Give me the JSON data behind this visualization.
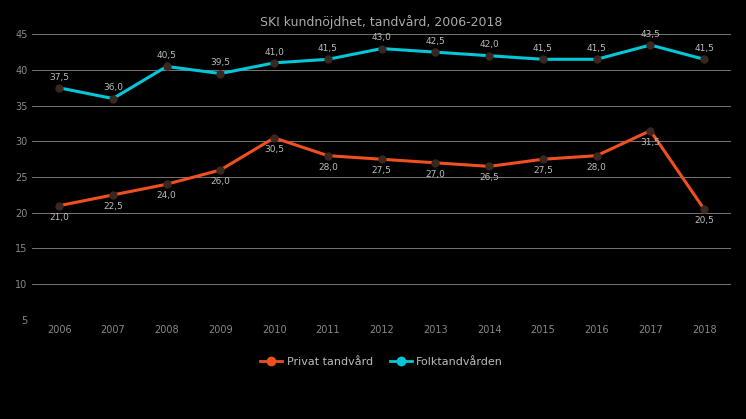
{
  "title": "SKI kundnöjdhet, tandvård, 2006-2018",
  "years": [
    2006,
    2007,
    2008,
    2009,
    2010,
    2011,
    2012,
    2013,
    2014,
    2015,
    2016,
    2017,
    2018
  ],
  "privat": [
    21.0,
    22.5,
    24.0,
    26.0,
    30.5,
    28.0,
    27.5,
    27.0,
    26.5,
    27.5,
    28.0,
    31.5,
    20.5
  ],
  "folk": [
    37.5,
    36.0,
    40.5,
    39.5,
    41.0,
    41.5,
    43.0,
    42.5,
    42.0,
    41.5,
    41.5,
    43.5,
    41.5
  ],
  "privat_labels": [
    "21,0",
    "22,5",
    "24,0",
    "26,0",
    "30,5",
    "28,0",
    "27,5",
    "27,0",
    "26,5",
    "27,5",
    "28,0",
    "31,5",
    "20,5"
  ],
  "folk_labels": [
    "37,5",
    "36,0",
    "40,5",
    "39,5",
    "41,0",
    "41,5",
    "43,0",
    "42,5",
    "42,0",
    "41,5",
    "41,5",
    "43,5",
    "41,5"
  ],
  "privat_color": "#f05020",
  "folk_color": "#00c8d8",
  "marker_color": "#3a2820",
  "legend_privat": "Privat tandvård",
  "legend_folk": "Folktandvården",
  "ylim": [
    5,
    45
  ],
  "yticks": [
    5,
    10,
    15,
    20,
    25,
    30,
    35,
    40,
    45
  ],
  "background_color": "#000000",
  "plot_bg": "#000000",
  "grid_color": "#888888",
  "title_color": "#aaaaaa",
  "tick_color": "#888888",
  "label_color": "#bbbbbb",
  "title_fontsize": 9,
  "label_fontsize": 6.5,
  "tick_fontsize": 7
}
